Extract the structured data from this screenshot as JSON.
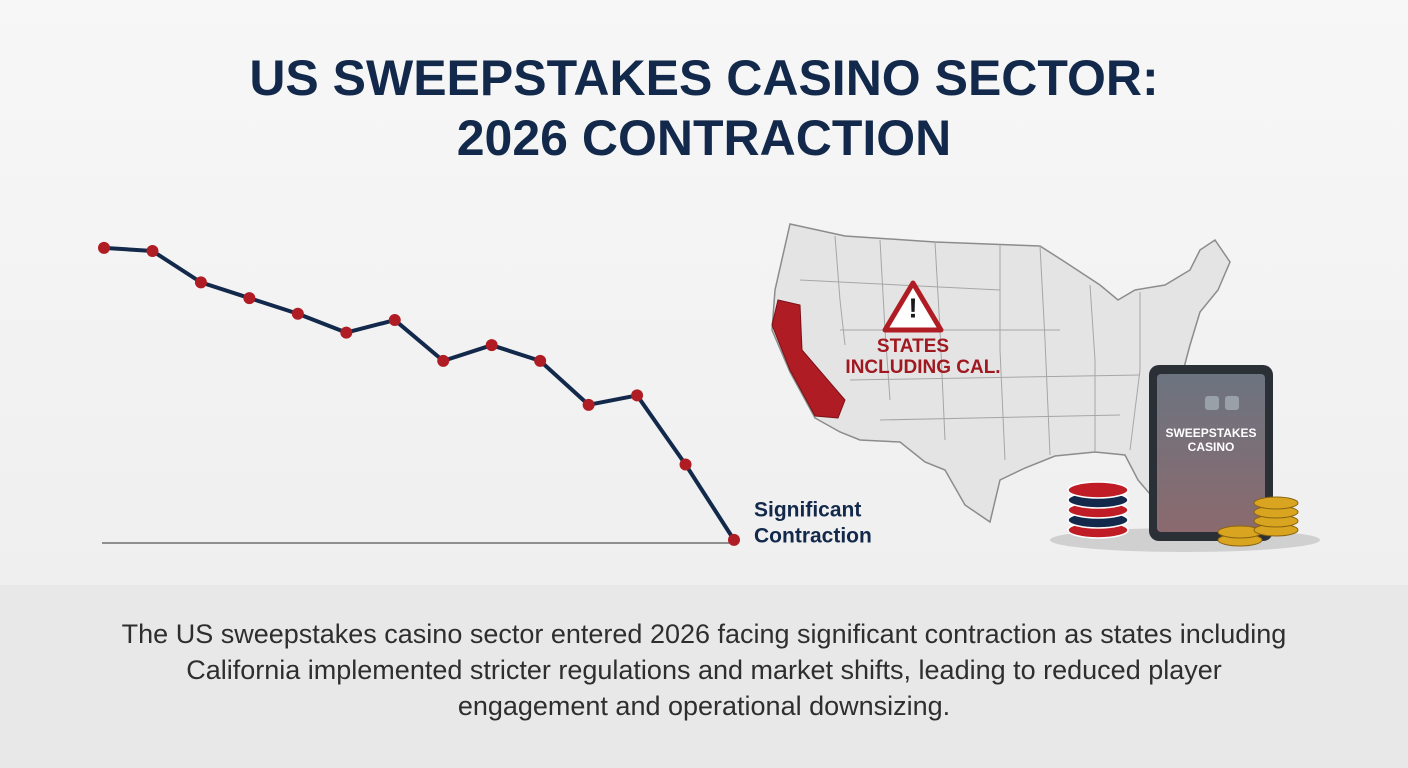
{
  "chart_data": {
    "type": "line",
    "title": [
      "US SWEEPSTAKES CASINO SECTOR:",
      "2026 CONTRACTION"
    ],
    "categories": [
      null,
      null,
      null,
      null,
      null,
      null,
      null,
      null,
      null,
      null,
      null,
      null,
      null,
      null
    ],
    "values": [
      94,
      93,
      83,
      78,
      73,
      67,
      71,
      58,
      63,
      58,
      44,
      47,
      25,
      1
    ],
    "ylim": [
      0,
      100
    ],
    "color": "#13294b",
    "marker_color": "#b01c24",
    "baseline": true,
    "annotation": [
      "Significant",
      "Contraction"
    ]
  },
  "map": {
    "label": [
      "STATES",
      "INCLUDING CAL."
    ]
  },
  "tablet": {
    "label": [
      "SWEEPSTAKES",
      "CASINO"
    ]
  },
  "caption": "The US sweepstakes casino sector entered 2026 facing significant contraction as states including California implemented stricter regulations and market shifts, leading to reduced player engagement and operational downsizing."
}
